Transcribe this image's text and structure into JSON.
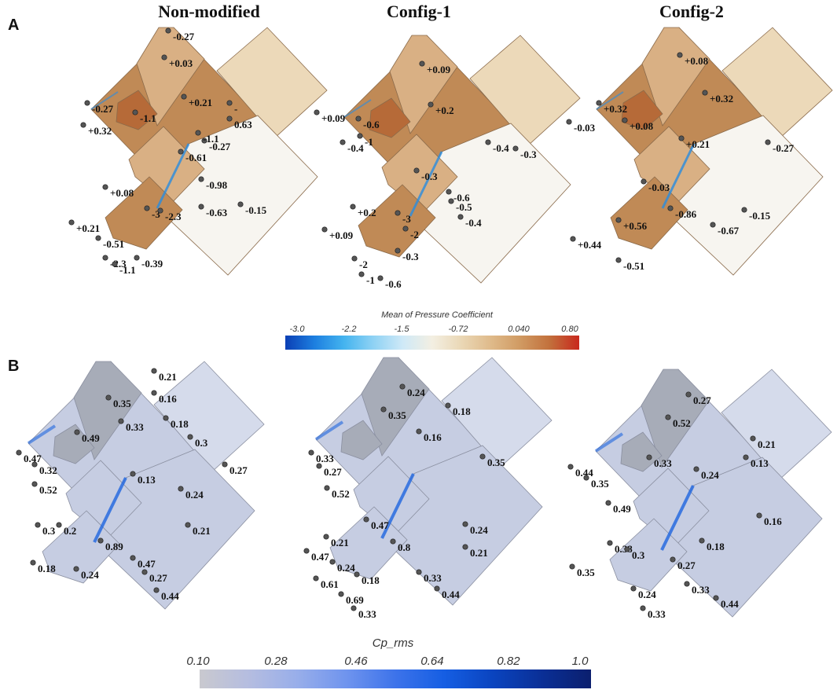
{
  "columns": [
    "Non-modified",
    "Config-1",
    "Config-2"
  ],
  "panel_labels": [
    "A",
    "B"
  ],
  "colorbar_mean": {
    "title": "Mean of Pressure Coefficient",
    "ticks": [
      "-3.0",
      "-2.2",
      "-1.5",
      "-0.72",
      "0.040",
      "0.80"
    ],
    "colors": [
      "#0b3fb5",
      "#1d7fe0",
      "#44b4ef",
      "#8fd2f4",
      "#cfe9f7",
      "#f3efe2",
      "#ead7b5",
      "#dfba8a",
      "#d09a62",
      "#c2703c",
      "#c8281d"
    ]
  },
  "colorbar_rms": {
    "title": "Cp_rms",
    "ticks": [
      "0.10",
      "0.28",
      "0.46",
      "0.64",
      "0.82",
      "1.0"
    ],
    "colors": [
      "#c9c9cf",
      "#b5bde0",
      "#98aeea",
      "#6f94ee",
      "#3d73ea",
      "#155ee3",
      "#0a44bf",
      "#0a2f96",
      "#0b1f6e"
    ]
  },
  "mean_colors": {
    "dark": "#c08a56",
    "mid": "#d9b084",
    "light": "#ecd9b9",
    "pale": "#f3eadb",
    "white": "#f7f5f0",
    "deep": "#b66a38",
    "edge": "#2a8de0"
  },
  "rms_colors": {
    "base": "#c6cde2",
    "gray": "#a7acb8",
    "light": "#d5dbeb",
    "edge": "#1f66e0"
  },
  "mean_labels": [
    [
      "-0.27",
      "+0.03",
      "+0.21",
      "-0.27",
      "-1.1",
      "+0.32",
      "-",
      "0.63",
      "-0.27",
      "-1.1",
      "-0.61",
      "-0.98",
      "+0.08",
      "-0.63",
      "-0.15",
      "-3",
      "-2.3",
      "+0.21",
      "-0.51",
      "-2.3",
      "-0.39",
      "-1.1"
    ],
    [
      "+0.09",
      "+0.2",
      "+0.09",
      "-0.6",
      "-1",
      "-0.4",
      "-0.4",
      "-0.3",
      "-0.3",
      "-0.6",
      "-0.5",
      "+0.2",
      "-3",
      "-0.4",
      "-2",
      "+0.09",
      "-0.3",
      "-2",
      "-1",
      "-0.6"
    ],
    [
      "+0.08",
      "+0.32",
      "+0.32",
      "-0.03",
      "+0.08",
      "+0.21",
      "-0.27",
      "-0.03",
      "-0.15",
      "-0.86",
      "+0.56",
      "-0.67",
      "+0.44",
      "-0.51"
    ]
  ],
  "rms_labels": [
    [
      "0.21",
      "0.35",
      "0.16",
      "0.49",
      "0.33",
      "0.18",
      "0.3",
      "0.47",
      "0.32",
      "0.27",
      "0.52",
      "0.13",
      "0.24",
      "0.21",
      "0.3",
      "0.2",
      "0.89",
      "0.18",
      "0.47",
      "0.24",
      "0.27",
      "0.44"
    ],
    [
      "0.24",
      "0.35",
      "0.18",
      "0.16",
      "0.33",
      "0.27",
      "0.35",
      "0.52",
      "0.47",
      "0.24",
      "0.21",
      "0.21",
      "0.47",
      "0.8",
      "0.24",
      "0.18",
      "0.33",
      "0.61",
      "0.69",
      "0.44",
      "0.33"
    ],
    [
      "0.27",
      "0.52",
      "0.21",
      "0.33",
      "0.13",
      "0.44",
      "0.24",
      "0.35",
      "0.49",
      "0.16",
      "0.38",
      "0.3",
      "0.18",
      "0.35",
      "0.27",
      "0.33",
      "0.24",
      "0.44",
      "0.33"
    ]
  ]
}
